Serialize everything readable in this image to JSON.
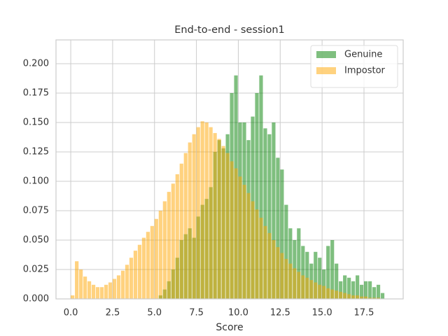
{
  "chart_data": {
    "type": "histogram",
    "title": "End-to-end - session1",
    "x_label": "Score",
    "bins": [
      0,
      0.25,
      0.5,
      0.75,
      1,
      1.25,
      1.5,
      1.75,
      2,
      2.25,
      2.5,
      2.75,
      3,
      3.25,
      3.5,
      3.75,
      4,
      4.25,
      4.5,
      4.75,
      5,
      5.25,
      5.5,
      5.75,
      6,
      6.25,
      6.5,
      6.75,
      7,
      7.25,
      7.5,
      7.75,
      8,
      8.25,
      8.5,
      8.75,
      9,
      9.25,
      9.5,
      9.75,
      10,
      10.25,
      10.5,
      10.75,
      11,
      11.25,
      11.5,
      11.75,
      12,
      12.25,
      12.5,
      12.75,
      13,
      13.25,
      13.5,
      13.75,
      14,
      14.25,
      14.5,
      14.75,
      15,
      15.25,
      15.5,
      15.75,
      16,
      16.25,
      16.5,
      16.75,
      17,
      17.25,
      17.5,
      17.75,
      18,
      18.25,
      18.5,
      18.75,
      19
    ],
    "series": [
      {
        "name": "Genuine",
        "color": "#008000",
        "values": [
          0,
          0,
          0,
          0,
          0,
          0,
          0,
          0,
          0,
          0,
          0,
          0,
          0,
          0,
          0,
          0,
          0,
          0,
          0,
          0,
          0,
          0.003,
          0.008,
          0.015,
          0.025,
          0.035,
          0.05,
          0.055,
          0.06,
          0.052,
          0.07,
          0.08,
          0.085,
          0.095,
          0.125,
          0.135,
          0.128,
          0.14,
          0.175,
          0.19,
          0.15,
          0.15,
          0.135,
          0.155,
          0.175,
          0.19,
          0.145,
          0.14,
          0.15,
          0.12,
          0.11,
          0.08,
          0.06,
          0.05,
          0.06,
          0.045,
          0.04,
          0.03,
          0.04,
          0.035,
          0.025,
          0.045,
          0.05,
          0.03,
          0.015,
          0.02,
          0.018,
          0.015,
          0.02,
          0.012,
          0.015,
          0.015,
          0.01,
          0.012,
          0.005,
          0
        ]
      },
      {
        "name": "Impostor",
        "color": "#ffa500",
        "values": [
          0.003,
          0.032,
          0.025,
          0.019,
          0.015,
          0.012,
          0.01,
          0.01,
          0.012,
          0.014,
          0.017,
          0.02,
          0.024,
          0.029,
          0.035,
          0.041,
          0.046,
          0.052,
          0.057,
          0.062,
          0.068,
          0.075,
          0.083,
          0.091,
          0.098,
          0.106,
          0.115,
          0.124,
          0.133,
          0.14,
          0.146,
          0.151,
          0.15,
          0.146,
          0.141,
          0.136,
          0.13,
          0.124,
          0.117,
          0.111,
          0.104,
          0.097,
          0.09,
          0.083,
          0.076,
          0.069,
          0.062,
          0.056,
          0.05,
          0.044,
          0.039,
          0.034,
          0.03,
          0.026,
          0.023,
          0.02,
          0.018,
          0.016,
          0.014,
          0.012,
          0.011,
          0.009,
          0.008,
          0.007,
          0.006,
          0.005,
          0.004,
          0.003,
          0.003,
          0.002,
          0.002,
          0.001,
          0.001,
          0.001,
          0,
          0
        ]
      }
    ],
    "xlim": [
      -0.88,
      19.84
    ],
    "xticks": [
      {
        "value": 0,
        "label": "0.0"
      },
      2.5,
      {
        "value": 5,
        "label": "5.0"
      },
      7.5,
      {
        "value": 10,
        "label": "10.0"
      },
      12.5,
      {
        "value": 15,
        "label": "15.0"
      },
      17.5
    ],
    "ylim": [
      0,
      0.2202
    ],
    "yticks": [
      {
        "value": 0,
        "label": "0.000"
      },
      0.025,
      {
        "value": 0.05,
        "label": "0.050"
      },
      0.075,
      {
        "value": 0.1,
        "label": "0.100"
      },
      0.125,
      {
        "value": 0.15,
        "label": "0.150"
      },
      0.175,
      {
        "value": 0.2,
        "label": "0.200"
      }
    ],
    "grid": true,
    "legend": "upper right"
  }
}
